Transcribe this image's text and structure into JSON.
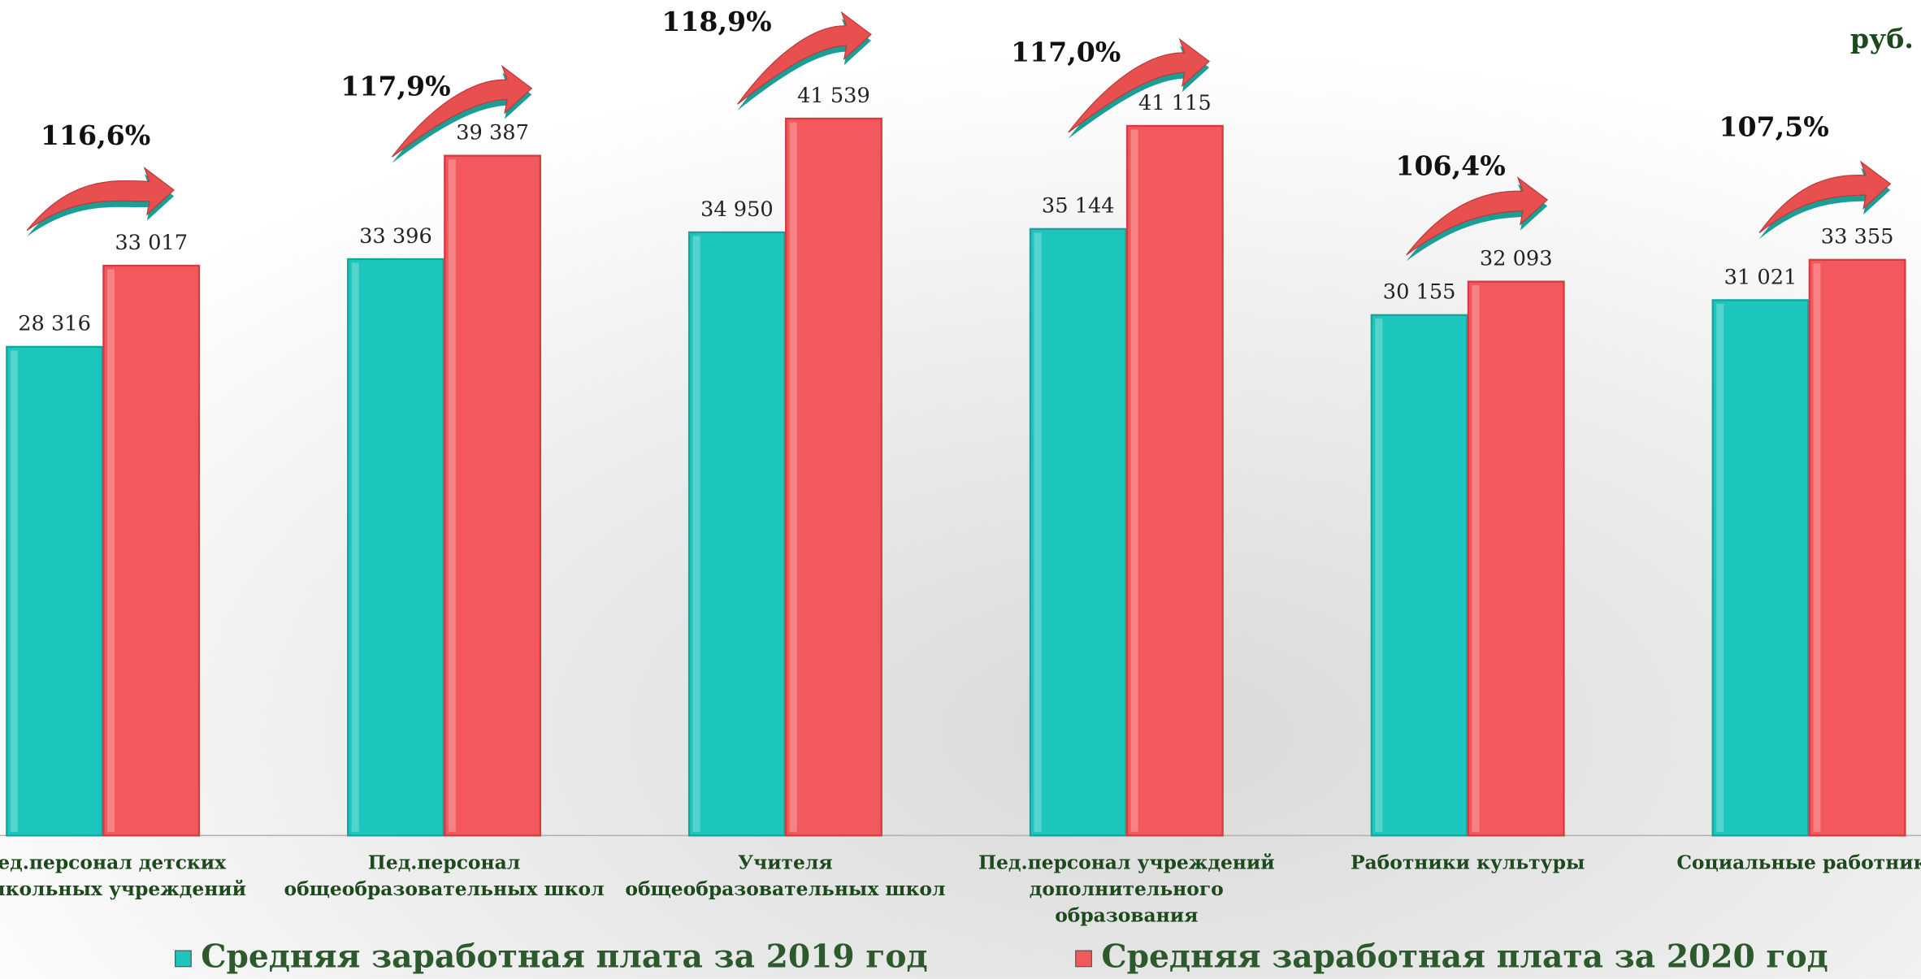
{
  "chart_data": {
    "type": "bar",
    "unit": "руб.",
    "categories": [
      [
        "Пед.персонал детских",
        "дошкольных учреждений"
      ],
      [
        "Пед.персонал",
        "общеобразовательных школ"
      ],
      [
        "Учителя",
        "общеобразовательных школ"
      ],
      [
        "Пед.персонал учреждений",
        "дополнительного",
        "образования"
      ],
      [
        "Работники культуры"
      ],
      [
        "Социальные работники"
      ]
    ],
    "series": [
      {
        "name": "Средняя заработная плата за 2019 год",
        "color": "#1cc6bd",
        "values": [
          28316,
          33396,
          34950,
          35144,
          30155,
          31021
        ],
        "value_labels": [
          "28 316",
          "33 396",
          "34 950",
          "35 144",
          "30 155",
          "31 021"
        ]
      },
      {
        "name": "Средняя заработная плата за 2020 год",
        "color": "#f2585c",
        "values": [
          33017,
          39387,
          41539,
          41115,
          32093,
          33355
        ],
        "value_labels": [
          "33 017",
          "39 387",
          "41 539",
          "41 115",
          "32 093",
          "33 355"
        ]
      }
    ],
    "annotations": [
      "116,6%",
      "117,9%",
      "118,9%",
      "117,0%",
      "106,4%",
      "107,5%"
    ],
    "ylim": [
      0,
      48400
    ],
    "legend": "bottom"
  }
}
